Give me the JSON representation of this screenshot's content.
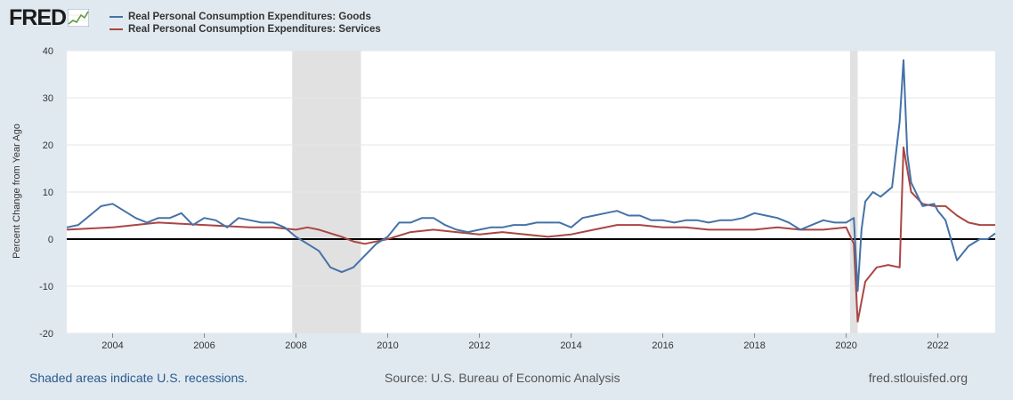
{
  "logo": {
    "text": "FRED"
  },
  "footer": {
    "recession_note": "Shaded areas indicate U.S. recessions.",
    "source": "Source: U.S. Bureau of Economic Analysis",
    "site": "fred.stlouisfed.org"
  },
  "colors": {
    "goods": "#4572a7",
    "services": "#aa4643",
    "background": "#e1e9f0",
    "recession": "#e1e1e1"
  },
  "chart_data": {
    "type": "line",
    "ylabel": "Percent Change from Year Ago",
    "ylim": [
      -20,
      40
    ],
    "yticks": [
      -20,
      -10,
      0,
      10,
      20,
      30,
      40
    ],
    "xlim": [
      "2003-01-01",
      "2023-04-01"
    ],
    "xticks": [
      "2004",
      "2006",
      "2008",
      "2010",
      "2012",
      "2014",
      "2016",
      "2018",
      "2020",
      "2022"
    ],
    "grid": true,
    "legend_position": "top-left",
    "recessions": [
      [
        "2007-12-01",
        "2009-06-01"
      ],
      [
        "2020-02-01",
        "2020-04-01"
      ]
    ],
    "series": [
      {
        "name": "Real Personal Consumption Expenditures: Goods",
        "x": [
          "2003-01",
          "2003-04",
          "2003-07",
          "2003-10",
          "2004-01",
          "2004-04",
          "2004-07",
          "2004-10",
          "2005-01",
          "2005-04",
          "2005-07",
          "2005-10",
          "2006-01",
          "2006-04",
          "2006-07",
          "2006-10",
          "2007-01",
          "2007-04",
          "2007-07",
          "2007-10",
          "2008-01",
          "2008-04",
          "2008-07",
          "2008-10",
          "2009-01",
          "2009-04",
          "2009-07",
          "2009-10",
          "2010-01",
          "2010-04",
          "2010-07",
          "2010-10",
          "2011-01",
          "2011-04",
          "2011-07",
          "2011-10",
          "2012-01",
          "2012-04",
          "2012-07",
          "2012-10",
          "2013-01",
          "2013-04",
          "2013-07",
          "2013-10",
          "2014-01",
          "2014-04",
          "2014-07",
          "2014-10",
          "2015-01",
          "2015-04",
          "2015-07",
          "2015-10",
          "2016-01",
          "2016-04",
          "2016-07",
          "2016-10",
          "2017-01",
          "2017-04",
          "2017-07",
          "2017-10",
          "2018-01",
          "2018-04",
          "2018-07",
          "2018-10",
          "2019-01",
          "2019-04",
          "2019-07",
          "2019-10",
          "2020-01",
          "2020-03",
          "2020-04",
          "2020-05",
          "2020-06",
          "2020-08",
          "2020-10",
          "2021-01",
          "2021-03",
          "2021-04",
          "2021-05",
          "2021-06",
          "2021-09",
          "2021-12",
          "2022-01",
          "2022-03",
          "2022-06",
          "2022-09",
          "2022-12",
          "2023-02",
          "2023-04"
        ],
        "values": [
          2.5,
          3.0,
          5.0,
          7.0,
          7.5,
          6.0,
          4.5,
          3.5,
          4.5,
          4.5,
          5.5,
          3.0,
          4.5,
          4.0,
          2.5,
          4.5,
          4.0,
          3.5,
          3.5,
          2.5,
          0.5,
          -1.0,
          -2.5,
          -6.0,
          -7.0,
          -6.0,
          -3.5,
          -1.0,
          0.5,
          3.5,
          3.5,
          4.5,
          4.5,
          3.0,
          2.0,
          1.5,
          2.0,
          2.5,
          2.5,
          3.0,
          3.0,
          3.5,
          3.5,
          3.5,
          2.5,
          4.5,
          5.0,
          5.5,
          6.0,
          5.0,
          5.0,
          4.0,
          4.0,
          3.5,
          4.0,
          4.0,
          3.5,
          4.0,
          4.0,
          4.5,
          5.5,
          5.0,
          4.5,
          3.5,
          2.0,
          3.0,
          4.0,
          3.5,
          3.5,
          4.5,
          -11.0,
          2.0,
          8.0,
          10.0,
          9.0,
          11.0,
          25.0,
          38.0,
          18.0,
          12.0,
          7.0,
          7.5,
          6.0,
          4.0,
          -4.5,
          -1.5,
          0.0,
          0.0,
          1.2
        ]
      },
      {
        "name": "Real Personal Consumption Expenditures: Services",
        "x": [
          "2003-01",
          "2004-01",
          "2005-01",
          "2006-01",
          "2007-01",
          "2007-07",
          "2008-01",
          "2008-04",
          "2008-07",
          "2009-01",
          "2009-04",
          "2009-07",
          "2010-01",
          "2010-07",
          "2011-01",
          "2011-07",
          "2012-01",
          "2012-07",
          "2013-01",
          "2013-07",
          "2014-01",
          "2014-07",
          "2015-01",
          "2015-07",
          "2016-01",
          "2016-07",
          "2017-01",
          "2017-07",
          "2018-01",
          "2018-07",
          "2019-01",
          "2019-07",
          "2020-01",
          "2020-03",
          "2020-04",
          "2020-06",
          "2020-09",
          "2020-12",
          "2021-03",
          "2021-04",
          "2021-06",
          "2021-09",
          "2021-12",
          "2022-03",
          "2022-06",
          "2022-09",
          "2022-12",
          "2023-04"
        ],
        "values": [
          2.0,
          2.5,
          3.5,
          3.0,
          2.5,
          2.5,
          2.0,
          2.5,
          2.0,
          0.5,
          -0.5,
          -1.0,
          0.0,
          1.5,
          2.0,
          1.5,
          1.0,
          1.5,
          1.0,
          0.5,
          1.0,
          2.0,
          3.0,
          3.0,
          2.5,
          2.5,
          2.0,
          2.0,
          2.0,
          2.5,
          2.0,
          2.0,
          2.5,
          -1.0,
          -17.5,
          -9.0,
          -6.0,
          -5.5,
          -6.0,
          19.5,
          10.0,
          7.5,
          7.0,
          7.0,
          5.0,
          3.5,
          3.0,
          3.0
        ]
      }
    ]
  }
}
